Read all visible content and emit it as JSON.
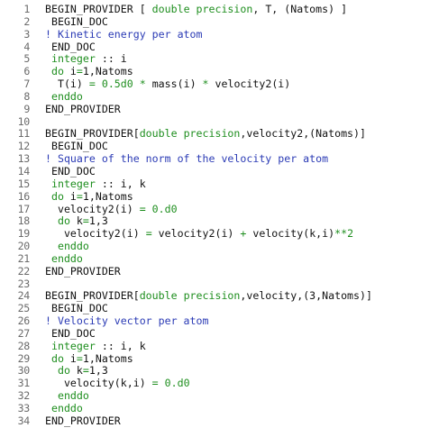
{
  "colors": {
    "keyword": "#1e8e1e",
    "comment": "#2b3bb5",
    "text": "#111111",
    "line_number": "#6b6b6b",
    "background": "#ffffff"
  },
  "lines": [
    {
      "n": "1",
      "tokens": [
        [
          "t",
          "BEGIN_PROVIDER [ "
        ],
        [
          "k",
          "double precision"
        ],
        [
          "t",
          ", T, (Natoms) ]"
        ]
      ]
    },
    {
      "n": "2",
      "tokens": [
        [
          "t",
          " BEGIN_DOC"
        ]
      ]
    },
    {
      "n": "3",
      "tokens": [
        [
          "c",
          "! Kinetic energy per atom"
        ]
      ]
    },
    {
      "n": "4",
      "tokens": [
        [
          "t",
          " END_DOC"
        ]
      ]
    },
    {
      "n": "5",
      "tokens": [
        [
          "t",
          " "
        ],
        [
          "k",
          "integer"
        ],
        [
          "t",
          " :: i"
        ]
      ]
    },
    {
      "n": "6",
      "tokens": [
        [
          "t",
          " "
        ],
        [
          "k",
          "do"
        ],
        [
          "t",
          " i"
        ],
        [
          "k",
          "="
        ],
        [
          "t",
          "1,Natoms"
        ]
      ]
    },
    {
      "n": "7",
      "tokens": [
        [
          "t",
          "  T(i) "
        ],
        [
          "k",
          "="
        ],
        [
          "t",
          " "
        ],
        [
          "k",
          "0.5d0"
        ],
        [
          "t",
          " "
        ],
        [
          "k",
          "*"
        ],
        [
          "t",
          " mass(i) "
        ],
        [
          "k",
          "*"
        ],
        [
          "t",
          " velocity2(i)"
        ]
      ]
    },
    {
      "n": "8",
      "tokens": [
        [
          "t",
          " "
        ],
        [
          "k",
          "enddo"
        ]
      ]
    },
    {
      "n": "9",
      "tokens": [
        [
          "t",
          "END_PROVIDER"
        ]
      ]
    },
    {
      "n": "10",
      "tokens": []
    },
    {
      "n": "11",
      "tokens": [
        [
          "t",
          "BEGIN_PROVIDER["
        ],
        [
          "k",
          "double precision"
        ],
        [
          "t",
          ",velocity2,(Natoms)]"
        ]
      ]
    },
    {
      "n": "12",
      "tokens": [
        [
          "t",
          " BEGIN_DOC"
        ]
      ]
    },
    {
      "n": "13",
      "tokens": [
        [
          "c",
          "! Square of the norm of the velocity per atom"
        ]
      ]
    },
    {
      "n": "14",
      "tokens": [
        [
          "t",
          " END_DOC"
        ]
      ]
    },
    {
      "n": "15",
      "tokens": [
        [
          "t",
          " "
        ],
        [
          "k",
          "integer"
        ],
        [
          "t",
          " :: i, k"
        ]
      ]
    },
    {
      "n": "16",
      "tokens": [
        [
          "t",
          " "
        ],
        [
          "k",
          "do"
        ],
        [
          "t",
          " i"
        ],
        [
          "k",
          "="
        ],
        [
          "t",
          "1,Natoms"
        ]
      ]
    },
    {
      "n": "17",
      "tokens": [
        [
          "t",
          "  velocity2(i) "
        ],
        [
          "k",
          "="
        ],
        [
          "t",
          " "
        ],
        [
          "k",
          "0.d0"
        ]
      ]
    },
    {
      "n": "18",
      "tokens": [
        [
          "t",
          "  "
        ],
        [
          "k",
          "do"
        ],
        [
          "t",
          " k"
        ],
        [
          "k",
          "="
        ],
        [
          "t",
          "1,3"
        ]
      ]
    },
    {
      "n": "19",
      "tokens": [
        [
          "t",
          "   velocity2(i) "
        ],
        [
          "k",
          "="
        ],
        [
          "t",
          " velocity2(i) "
        ],
        [
          "k",
          "+"
        ],
        [
          "t",
          " velocity(k,i)"
        ],
        [
          "k",
          "**2"
        ]
      ]
    },
    {
      "n": "20",
      "tokens": [
        [
          "t",
          "  "
        ],
        [
          "k",
          "enddo"
        ]
      ]
    },
    {
      "n": "21",
      "tokens": [
        [
          "t",
          " "
        ],
        [
          "k",
          "enddo"
        ]
      ]
    },
    {
      "n": "22",
      "tokens": [
        [
          "t",
          "END_PROVIDER"
        ]
      ]
    },
    {
      "n": "23",
      "tokens": []
    },
    {
      "n": "24",
      "tokens": [
        [
          "t",
          "BEGIN_PROVIDER["
        ],
        [
          "k",
          "double precision"
        ],
        [
          "t",
          ",velocity,(3,Natoms)]"
        ]
      ]
    },
    {
      "n": "25",
      "tokens": [
        [
          "t",
          " BEGIN_DOC"
        ]
      ]
    },
    {
      "n": "26",
      "tokens": [
        [
          "c",
          "! Velocity vector per atom"
        ]
      ]
    },
    {
      "n": "27",
      "tokens": [
        [
          "t",
          " END_DOC"
        ]
      ]
    },
    {
      "n": "28",
      "tokens": [
        [
          "t",
          " "
        ],
        [
          "k",
          "integer"
        ],
        [
          "t",
          " :: i, k"
        ]
      ]
    },
    {
      "n": "29",
      "tokens": [
        [
          "t",
          " "
        ],
        [
          "k",
          "do"
        ],
        [
          "t",
          " i"
        ],
        [
          "k",
          "="
        ],
        [
          "t",
          "1,Natoms"
        ]
      ]
    },
    {
      "n": "30",
      "tokens": [
        [
          "t",
          "  "
        ],
        [
          "k",
          "do"
        ],
        [
          "t",
          " k"
        ],
        [
          "k",
          "="
        ],
        [
          "t",
          "1,3"
        ]
      ]
    },
    {
      "n": "31",
      "tokens": [
        [
          "t",
          "   velocity(k,i) "
        ],
        [
          "k",
          "="
        ],
        [
          "t",
          " "
        ],
        [
          "k",
          "0.d0"
        ]
      ]
    },
    {
      "n": "32",
      "tokens": [
        [
          "t",
          "  "
        ],
        [
          "k",
          "enddo"
        ]
      ]
    },
    {
      "n": "33",
      "tokens": [
        [
          "t",
          " "
        ],
        [
          "k",
          "enddo"
        ]
      ]
    },
    {
      "n": "34",
      "tokens": [
        [
          "t",
          "END_PROVIDER"
        ]
      ]
    }
  ]
}
